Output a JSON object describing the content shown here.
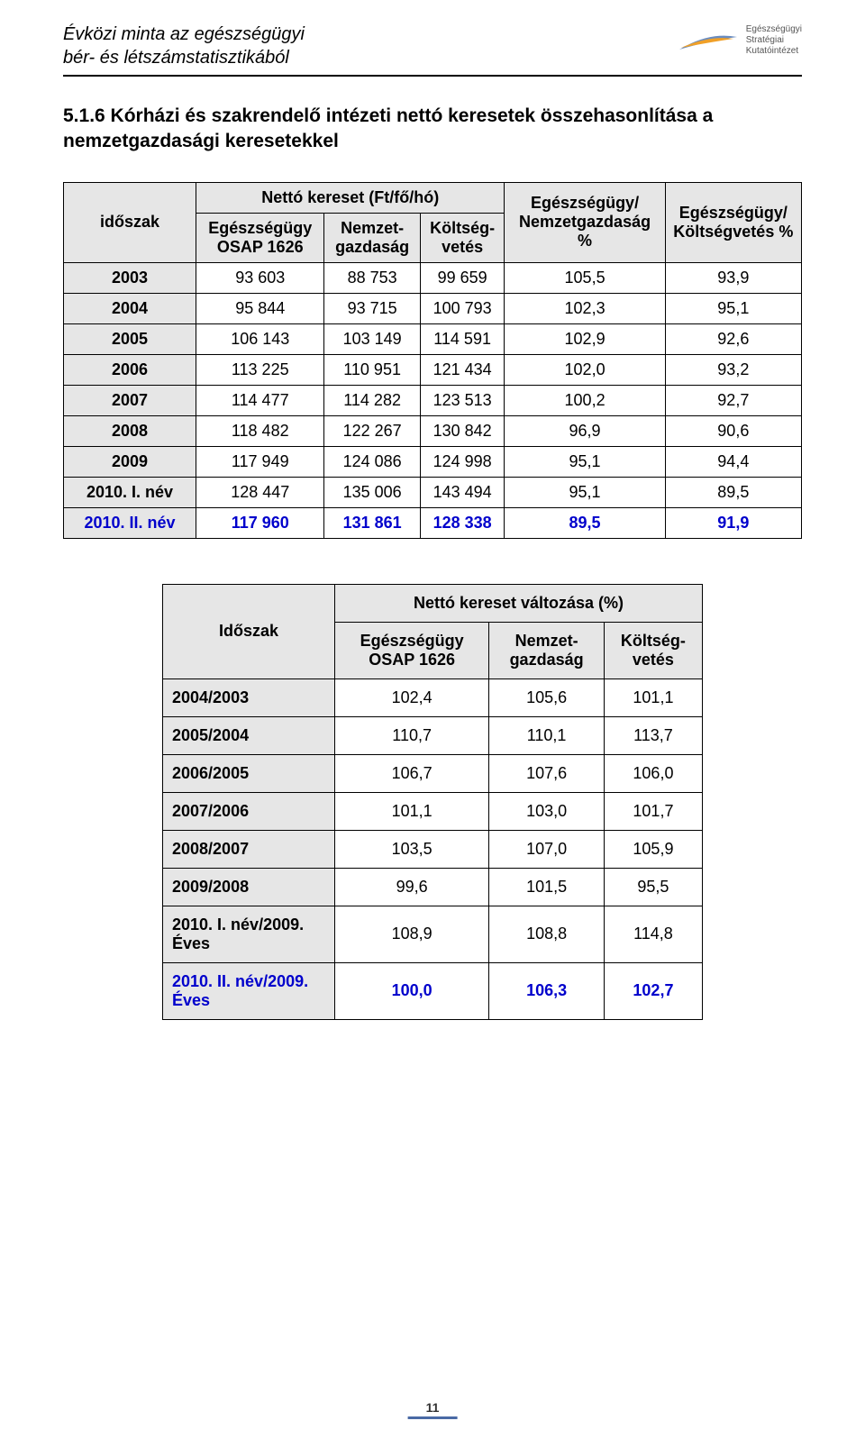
{
  "doc": {
    "title_line1": "Évközi minta az egészségügyi",
    "title_line2": "bér- és létszámstatisztikából",
    "logo_line1": "Egészségügyi",
    "logo_line2": "Stratégiai",
    "logo_line3": "Kutatóintézet",
    "swoosh_color_outer": "#6a8cbf",
    "swoosh_color_inner": "#f0a028"
  },
  "section": {
    "title": "5.1.6 Kórházi és szakrendelő intézeti nettó keresetek összehasonlítása a nemzetgazdasági keresetekkel"
  },
  "table1": {
    "head": {
      "c1": "időszak",
      "super": "Nettó kereset (Ft/fő/hó)",
      "c2": "Egészségügy OSAP 1626",
      "c3": "Nemzet-gazdaság",
      "c4": "Költség-vetés",
      "c5": "Egészségügy/ Nemzetgazdaság %",
      "c6": "Egészségügy/ Költségvetés %"
    },
    "rows": [
      {
        "label": "2003",
        "v1": "93 603",
        "v2": "88 753",
        "v3": "99 659",
        "v4": "105,5",
        "v5": "93,9"
      },
      {
        "label": "2004",
        "v1": "95 844",
        "v2": "93 715",
        "v3": "100 793",
        "v4": "102,3",
        "v5": "95,1"
      },
      {
        "label": "2005",
        "v1": "106 143",
        "v2": "103 149",
        "v3": "114 591",
        "v4": "102,9",
        "v5": "92,6"
      },
      {
        "label": "2006",
        "v1": "113 225",
        "v2": "110 951",
        "v3": "121 434",
        "v4": "102,0",
        "v5": "93,2"
      },
      {
        "label": "2007",
        "v1": "114 477",
        "v2": "114 282",
        "v3": "123 513",
        "v4": "100,2",
        "v5": "92,7"
      },
      {
        "label": "2008",
        "v1": "118 482",
        "v2": "122 267",
        "v3": "130 842",
        "v4": "96,9",
        "v5": "90,6"
      },
      {
        "label": "2009",
        "v1": "117 949",
        "v2": "124 086",
        "v3": "124 998",
        "v4": "95,1",
        "v5": "94,4"
      },
      {
        "label": "2010. I. név",
        "v1": "128 447",
        "v2": "135 006",
        "v3": "143 494",
        "v4": "95,1",
        "v5": "89,5"
      },
      {
        "label": "2010. II. név",
        "v1": "117 960",
        "v2": "131 861",
        "v3": "128 338",
        "v4": "89,5",
        "v5": "91,9",
        "blue": true
      }
    ]
  },
  "table2": {
    "head": {
      "c1": "Időszak",
      "super": "Nettó kereset változása (%)",
      "c2": "Egészségügy OSAP 1626",
      "c3": "Nemzet-gazdaság",
      "c4": "Költség-vetés"
    },
    "rows": [
      {
        "label": "2004/2003",
        "v1": "102,4",
        "v2": "105,6",
        "v3": "101,1"
      },
      {
        "label": "2005/2004",
        "v1": "110,7",
        "v2": "110,1",
        "v3": "113,7"
      },
      {
        "label": "2006/2005",
        "v1": "106,7",
        "v2": "107,6",
        "v3": "106,0"
      },
      {
        "label": "2007/2006",
        "v1": "101,1",
        "v2": "103,0",
        "v3": "101,7"
      },
      {
        "label": "2008/2007",
        "v1": "103,5",
        "v2": "107,0",
        "v3": "105,9"
      },
      {
        "label": "2009/2008",
        "v1": "99,6",
        "v2": "101,5",
        "v3": "95,5"
      },
      {
        "label": "2010. I. név/2009. Éves",
        "v1": "108,9",
        "v2": "108,8",
        "v3": "114,8"
      },
      {
        "label": "2010. II. név/2009. Éves",
        "v1": "100,0",
        "v2": "106,3",
        "v3": "102,7",
        "blue": true
      }
    ]
  },
  "page_number": "11"
}
